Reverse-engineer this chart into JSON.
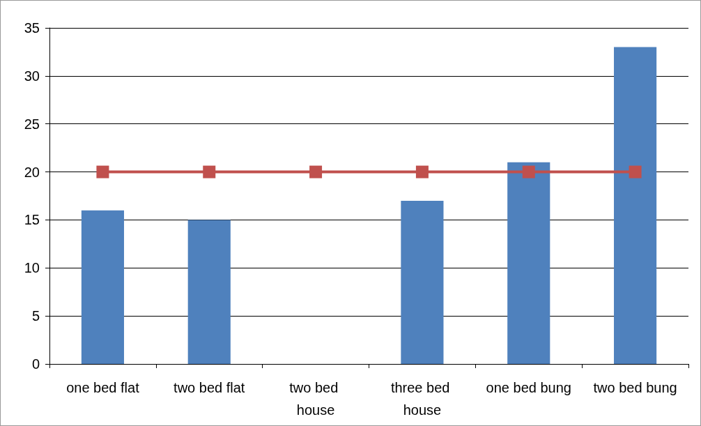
{
  "chart_data": {
    "type": "bar",
    "categories": [
      "one bed flat",
      "two bed flat",
      "two bed house",
      "three bed house",
      "one bed bung",
      "two bed bung"
    ],
    "series": [
      {
        "color": "#4f81bd",
        "values": [
          16,
          15,
          null,
          17,
          21,
          33
        ]
      },
      {
        "type": "line",
        "color": "#c0504d",
        "values": [
          20,
          20,
          20,
          20,
          20,
          20
        ],
        "marker": "square",
        "line_style": "solid"
      }
    ],
    "ylim": [
      0,
      35
    ],
    "yticks": [
      0,
      5,
      10,
      15,
      20,
      25,
      30,
      35
    ],
    "grid": "y"
  }
}
